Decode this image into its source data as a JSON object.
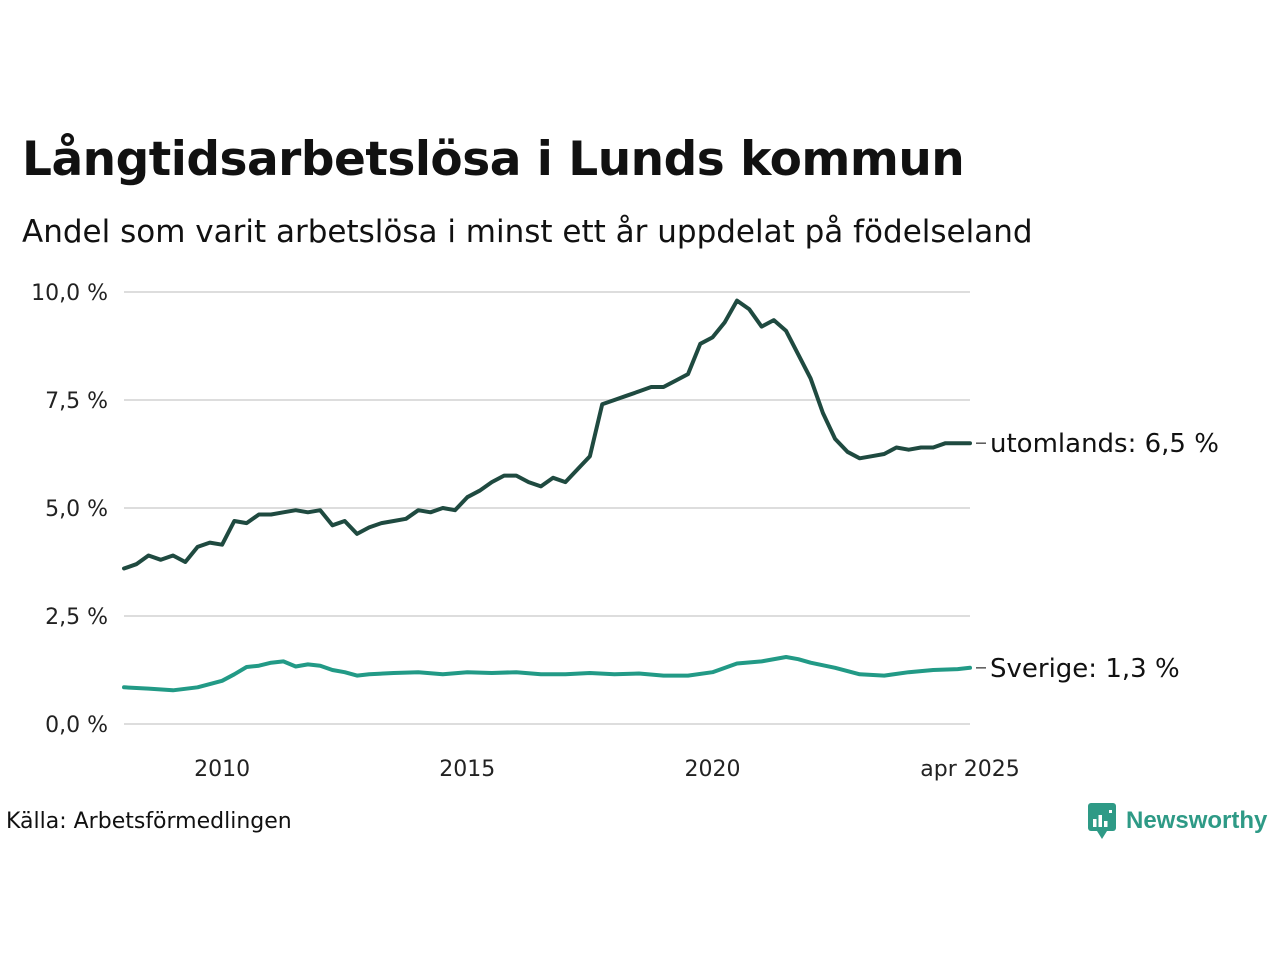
{
  "header": {
    "title": "Långtidsarbetslösa i Lunds kommun",
    "subtitle": "Andel som varit arbetslösa i minst ett år uppdelat på födelseland"
  },
  "footer": {
    "source": "Källa: Arbetsförmedlingen",
    "brand": "Newsworthy",
    "brand_icon": "newsworthy-logo-icon",
    "brand_color": "#2e9a86"
  },
  "chart_data": {
    "type": "line",
    "title": "Långtidsarbetslösa i Lunds kommun",
    "subtitle": "Andel som varit arbetslösa i minst ett år uppdelat på födelseland",
    "xlabel": "",
    "ylabel": "",
    "ylim": [
      0,
      10
    ],
    "xlim": [
      "2008-01",
      "2025-04"
    ],
    "grid": "horizontal",
    "y_ticks": [
      0,
      2.5,
      5,
      7.5,
      10
    ],
    "y_tick_labels": [
      "0,0 %",
      "2,5 %",
      "5,0 %",
      "7,5 %",
      "10,0 %"
    ],
    "x_ticks": [
      "2010-01",
      "2015-01",
      "2020-01",
      "2025-04"
    ],
    "x_tick_labels": [
      "2010",
      "2015",
      "2020",
      "apr 2025"
    ],
    "series": [
      {
        "name": "utomlands",
        "end_label": "utomlands: 6,5 %",
        "color": "#1f4a40",
        "points": [
          [
            "2008-01",
            3.6
          ],
          [
            "2008-04",
            3.7
          ],
          [
            "2008-07",
            3.9
          ],
          [
            "2008-10",
            3.8
          ],
          [
            "2009-01",
            3.9
          ],
          [
            "2009-04",
            3.75
          ],
          [
            "2009-07",
            4.1
          ],
          [
            "2009-10",
            4.2
          ],
          [
            "2010-01",
            4.15
          ],
          [
            "2010-04",
            4.7
          ],
          [
            "2010-07",
            4.65
          ],
          [
            "2010-10",
            4.85
          ],
          [
            "2011-01",
            4.85
          ],
          [
            "2011-04",
            4.9
          ],
          [
            "2011-07",
            4.95
          ],
          [
            "2011-10",
            4.9
          ],
          [
            "2012-01",
            4.95
          ],
          [
            "2012-04",
            4.6
          ],
          [
            "2012-07",
            4.7
          ],
          [
            "2012-10",
            4.4
          ],
          [
            "2013-01",
            4.55
          ],
          [
            "2013-04",
            4.65
          ],
          [
            "2013-07",
            4.7
          ],
          [
            "2013-10",
            4.75
          ],
          [
            "2014-01",
            4.95
          ],
          [
            "2014-04",
            4.9
          ],
          [
            "2014-07",
            5.0
          ],
          [
            "2014-10",
            4.95
          ],
          [
            "2015-01",
            5.25
          ],
          [
            "2015-04",
            5.4
          ],
          [
            "2015-07",
            5.6
          ],
          [
            "2015-10",
            5.75
          ],
          [
            "2016-01",
            5.75
          ],
          [
            "2016-04",
            5.6
          ],
          [
            "2016-07",
            5.5
          ],
          [
            "2016-10",
            5.7
          ],
          [
            "2017-01",
            5.6
          ],
          [
            "2017-04",
            5.9
          ],
          [
            "2017-07",
            6.2
          ],
          [
            "2017-10",
            7.4
          ],
          [
            "2018-01",
            7.5
          ],
          [
            "2018-04",
            7.6
          ],
          [
            "2018-07",
            7.7
          ],
          [
            "2018-10",
            7.8
          ],
          [
            "2019-01",
            7.8
          ],
          [
            "2019-04",
            7.95
          ],
          [
            "2019-07",
            8.1
          ],
          [
            "2019-10",
            8.8
          ],
          [
            "2020-01",
            8.95
          ],
          [
            "2020-04",
            9.3
          ],
          [
            "2020-07",
            9.8
          ],
          [
            "2020-10",
            9.6
          ],
          [
            "2021-01",
            9.2
          ],
          [
            "2021-04",
            9.35
          ],
          [
            "2021-07",
            9.1
          ],
          [
            "2021-10",
            8.55
          ],
          [
            "2022-01",
            8.0
          ],
          [
            "2022-04",
            7.2
          ],
          [
            "2022-07",
            6.6
          ],
          [
            "2022-10",
            6.3
          ],
          [
            "2023-01",
            6.15
          ],
          [
            "2023-04",
            6.2
          ],
          [
            "2023-07",
            6.25
          ],
          [
            "2023-10",
            6.4
          ],
          [
            "2024-01",
            6.35
          ],
          [
            "2024-04",
            6.4
          ],
          [
            "2024-07",
            6.4
          ],
          [
            "2024-10",
            6.5
          ],
          [
            "2025-01",
            6.5
          ],
          [
            "2025-04",
            6.5
          ]
        ]
      },
      {
        "name": "Sverige",
        "end_label": "Sverige: 1,3 %",
        "color": "#229a86",
        "points": [
          [
            "2008-01",
            0.85
          ],
          [
            "2008-07",
            0.82
          ],
          [
            "2009-01",
            0.78
          ],
          [
            "2009-07",
            0.85
          ],
          [
            "2010-01",
            1.0
          ],
          [
            "2010-04",
            1.15
          ],
          [
            "2010-07",
            1.32
          ],
          [
            "2010-10",
            1.35
          ],
          [
            "2011-01",
            1.42
          ],
          [
            "2011-04",
            1.45
          ],
          [
            "2011-07",
            1.33
          ],
          [
            "2011-10",
            1.38
          ],
          [
            "2012-01",
            1.35
          ],
          [
            "2012-04",
            1.25
          ],
          [
            "2012-07",
            1.2
          ],
          [
            "2012-10",
            1.12
          ],
          [
            "2013-01",
            1.15
          ],
          [
            "2013-07",
            1.18
          ],
          [
            "2014-01",
            1.2
          ],
          [
            "2014-07",
            1.15
          ],
          [
            "2015-01",
            1.2
          ],
          [
            "2015-07",
            1.18
          ],
          [
            "2016-01",
            1.2
          ],
          [
            "2016-07",
            1.15
          ],
          [
            "2017-01",
            1.15
          ],
          [
            "2017-07",
            1.18
          ],
          [
            "2018-01",
            1.15
          ],
          [
            "2018-07",
            1.17
          ],
          [
            "2019-01",
            1.12
          ],
          [
            "2019-07",
            1.12
          ],
          [
            "2020-01",
            1.2
          ],
          [
            "2020-07",
            1.4
          ],
          [
            "2021-01",
            1.45
          ],
          [
            "2021-07",
            1.55
          ],
          [
            "2021-10",
            1.5
          ],
          [
            "2022-01",
            1.42
          ],
          [
            "2022-07",
            1.3
          ],
          [
            "2023-01",
            1.15
          ],
          [
            "2023-07",
            1.12
          ],
          [
            "2024-01",
            1.2
          ],
          [
            "2024-07",
            1.25
          ],
          [
            "2025-01",
            1.27
          ],
          [
            "2025-04",
            1.3
          ]
        ]
      }
    ]
  }
}
